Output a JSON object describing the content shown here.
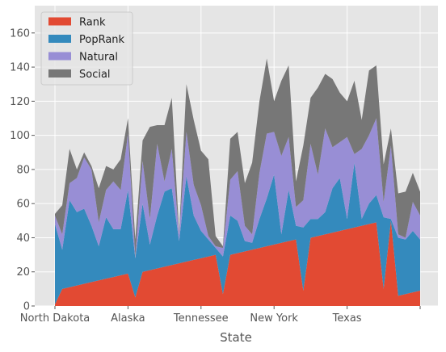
{
  "chart_data": {
    "type": "area",
    "stacked": true,
    "style": "ggplot",
    "xlabel": "State",
    "ylabel": "",
    "ylim": [
      0,
      176
    ],
    "yticks": [
      0,
      20,
      40,
      60,
      80,
      100,
      120,
      140,
      160
    ],
    "xticklabels": [
      "North Dakota",
      "Alaska",
      "Tennessee",
      "New York",
      "Texas",
      ""
    ],
    "grid": true,
    "legend_position": "upper left",
    "series": [
      {
        "name": "Rank",
        "color": "#E24A33",
        "values": [
          1,
          10,
          11,
          12,
          13,
          14,
          15,
          16,
          17,
          18,
          19,
          5,
          20,
          21,
          22,
          23,
          24,
          25,
          26,
          27,
          28,
          29,
          30,
          7,
          30,
          31,
          32,
          33,
          34,
          35,
          36,
          37,
          38,
          39,
          9,
          40,
          41,
          42,
          43,
          44,
          45,
          46,
          47,
          48,
          49,
          10,
          50,
          6,
          7,
          8,
          9
        ]
      },
      {
        "name": "PopRank",
        "color": "#348ABD",
        "values": [
          47,
          23,
          51,
          43,
          44,
          33,
          20,
          36,
          28,
          27,
          49,
          23,
          40,
          15,
          31,
          44,
          45,
          13,
          50,
          26,
          16,
          10,
          4,
          22,
          23,
          19,
          6,
          4,
          17,
          28,
          41,
          5,
          30,
          8,
          37,
          11,
          10,
          13,
          26,
          31,
          6,
          38,
          4,
          12,
          16,
          42,
          1,
          34,
          32,
          36,
          30
        ]
      },
      {
        "name": "Natural",
        "color": "#988ED5",
        "values": [
          5,
          9,
          10,
          20,
          30,
          33,
          14,
          16,
          28,
          23,
          33,
          1,
          25,
          15,
          42,
          6,
          23,
          4,
          26,
          18,
          15,
          2,
          1,
          5,
          21,
          29,
          9,
          5,
          27,
          38,
          25,
          46,
          31,
          11,
          16,
          44,
          26,
          49,
          24,
          21,
          48,
          5,
          41,
          40,
          45,
          9,
          43,
          2,
          1,
          17,
          14
        ]
      },
      {
        "name": "Social",
        "color": "#777777",
        "values": [
          1,
          17,
          20,
          5,
          3,
          2,
          20,
          14,
          7,
          18,
          9,
          10,
          12,
          54,
          11,
          33,
          30,
          1,
          28,
          38,
          32,
          45,
          6,
          1,
          24,
          23,
          25,
          42,
          42,
          44,
          18,
          44,
          42,
          15,
          32,
          27,
          51,
          32,
          40,
          29,
          21,
          43,
          17,
          38,
          31,
          22,
          10,
          24,
          27,
          17,
          14
        ]
      }
    ]
  }
}
